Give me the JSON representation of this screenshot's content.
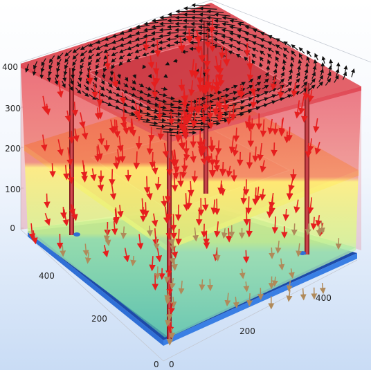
{
  "view": {
    "background_top": "#ffffff",
    "background_bottom": "#c9dcf5"
  },
  "axes": {
    "z_ticks": [
      "0",
      "100",
      "200",
      "300",
      "400"
    ],
    "left_ticks": [
      "0",
      "200",
      "400"
    ],
    "right_ticks": [
      "0",
      "200",
      "400"
    ]
  },
  "colors": {
    "top_layer": "#e0424e",
    "middle_layer_top": "#ffa01e",
    "middle_layer_bottom": "#e9f77a",
    "bottom_layer": "#7fd5a0",
    "base_plate": "#2f6fd6",
    "arrow_red": "#e61e1e",
    "arrow_black": "#111111",
    "arrow_tan": "#b08a5a",
    "pipe": "#b8262a"
  }
}
